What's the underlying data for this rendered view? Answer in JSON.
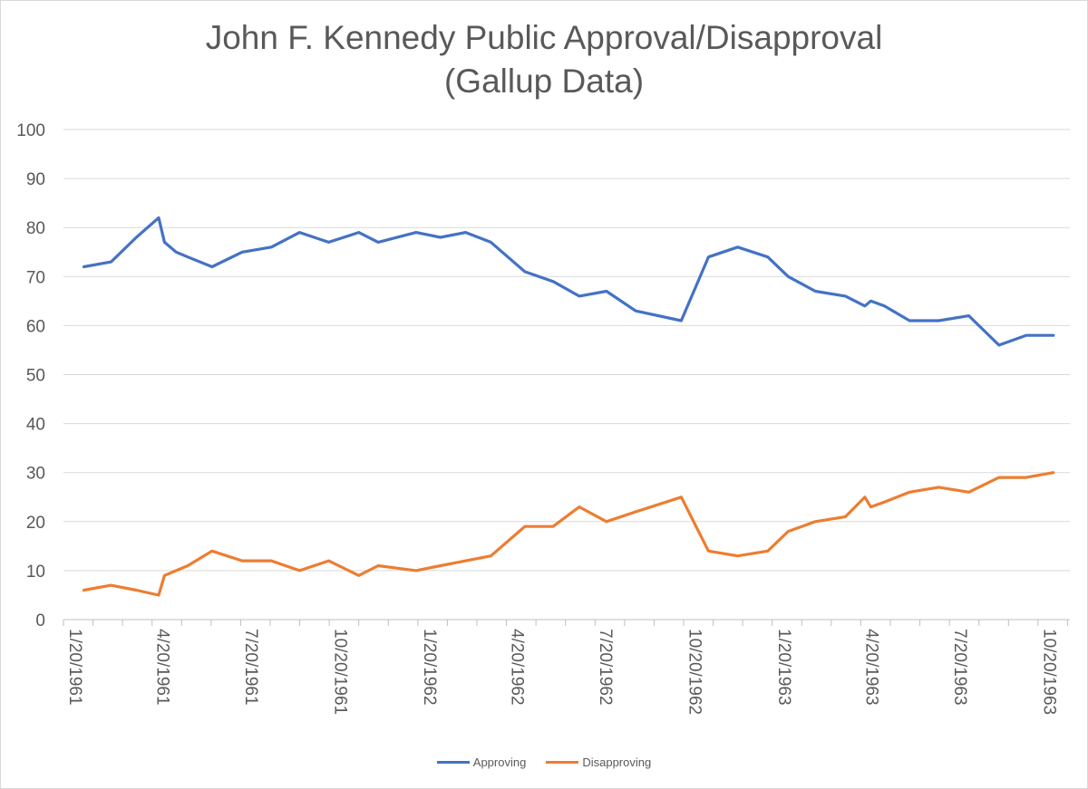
{
  "chart_data": {
    "type": "line",
    "title": [
      "John F. Kennedy Public Approval/Disapproval",
      "(Gallup Data)"
    ],
    "xlabel": "",
    "ylabel": "",
    "ylim": [
      0,
      100
    ],
    "yticks": [
      0,
      10,
      20,
      30,
      40,
      50,
      60,
      70,
      80,
      90,
      100
    ],
    "xlim": [
      "1961-01-20",
      "1963-11-22"
    ],
    "xticks": [
      "1/20/1961",
      "4/20/1961",
      "7/20/1961",
      "10/20/1961",
      "1/20/1962",
      "4/20/1962",
      "7/20/1962",
      "10/20/1962",
      "1/20/1963",
      "4/20/1963",
      "7/20/1963",
      "10/20/1963"
    ],
    "grid": true,
    "legend_position": "bottom",
    "x": [
      "1961-02-10",
      "1961-03-10",
      "1961-04-05",
      "1961-04-28",
      "1961-05-04",
      "1961-05-16",
      "1961-05-28",
      "1961-06-22",
      "1961-07-23",
      "1961-08-22",
      "1961-09-20",
      "1961-10-20",
      "1961-11-20",
      "1961-12-10",
      "1962-01-18",
      "1962-02-12",
      "1962-03-10",
      "1962-04-05",
      "1962-05-10",
      "1962-06-08",
      "1962-07-05",
      "1962-08-02",
      "1962-09-01",
      "1962-10-18",
      "1962-11-15",
      "1962-12-15",
      "1963-01-15",
      "1963-02-05",
      "1963-03-05",
      "1963-04-05",
      "1963-04-25",
      "1963-05-01",
      "1963-05-15",
      "1963-06-10",
      "1963-07-10",
      "1963-08-10",
      "1963-09-10",
      "1963-10-08",
      "1963-11-05"
    ],
    "series": [
      {
        "name": "Approving",
        "color": "#4472c4",
        "values": [
          72,
          73,
          78,
          82,
          77,
          75,
          74,
          72,
          75,
          76,
          79,
          77,
          79,
          77,
          79,
          78,
          79,
          77,
          71,
          69,
          66,
          67,
          63,
          61,
          74,
          76,
          74,
          70,
          67,
          66,
          64,
          65,
          64,
          61,
          61,
          62,
          56,
          58,
          58
        ]
      },
      {
        "name": "Disapproving",
        "color": "#ed7d31",
        "values": [
          6,
          7,
          6,
          5,
          9,
          10,
          11,
          14,
          12,
          12,
          10,
          12,
          9,
          11,
          10,
          11,
          12,
          13,
          19,
          19,
          23,
          20,
          22,
          25,
          14,
          13,
          14,
          18,
          20,
          21,
          25,
          23,
          24,
          26,
          27,
          26,
          29,
          29,
          30
        ]
      }
    ]
  },
  "colors": {
    "grid": "#d9d9d9",
    "axis": "#bfbfbf",
    "text": "#595959"
  }
}
